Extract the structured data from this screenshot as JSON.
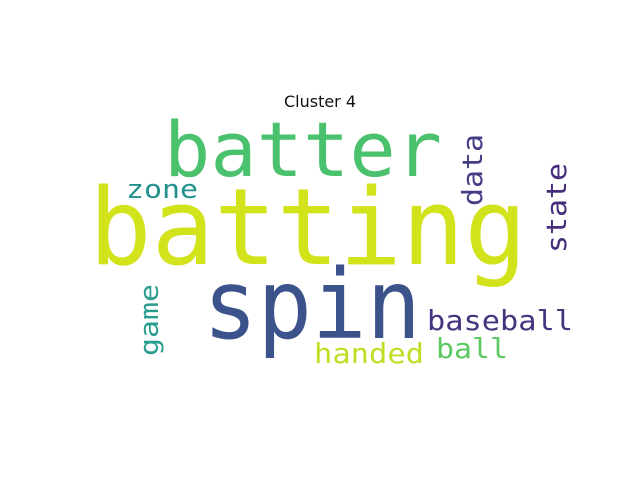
{
  "title": "Cluster 4",
  "words": [
    {
      "text": "batting",
      "color": "#d2e21b",
      "weight": 1.0
    },
    {
      "text": "spin",
      "color": "#3b528b",
      "weight": 0.86
    },
    {
      "text": "batter",
      "color": "#4ac16d",
      "weight": 0.74
    },
    {
      "text": "baseball",
      "color": "#46337e",
      "weight": 0.3
    },
    {
      "text": "state",
      "color": "#472d7b",
      "weight": 0.3
    },
    {
      "text": "data",
      "color": "#433e85",
      "weight": 0.3
    },
    {
      "text": "zone",
      "color": "#21918c",
      "weight": 0.28
    },
    {
      "text": "ball",
      "color": "#5ec962",
      "weight": 0.3
    },
    {
      "text": "handed",
      "color": "#bddf26",
      "weight": 0.3
    },
    {
      "text": "game",
      "color": "#2a9d8f",
      "weight": 0.28
    }
  ]
}
